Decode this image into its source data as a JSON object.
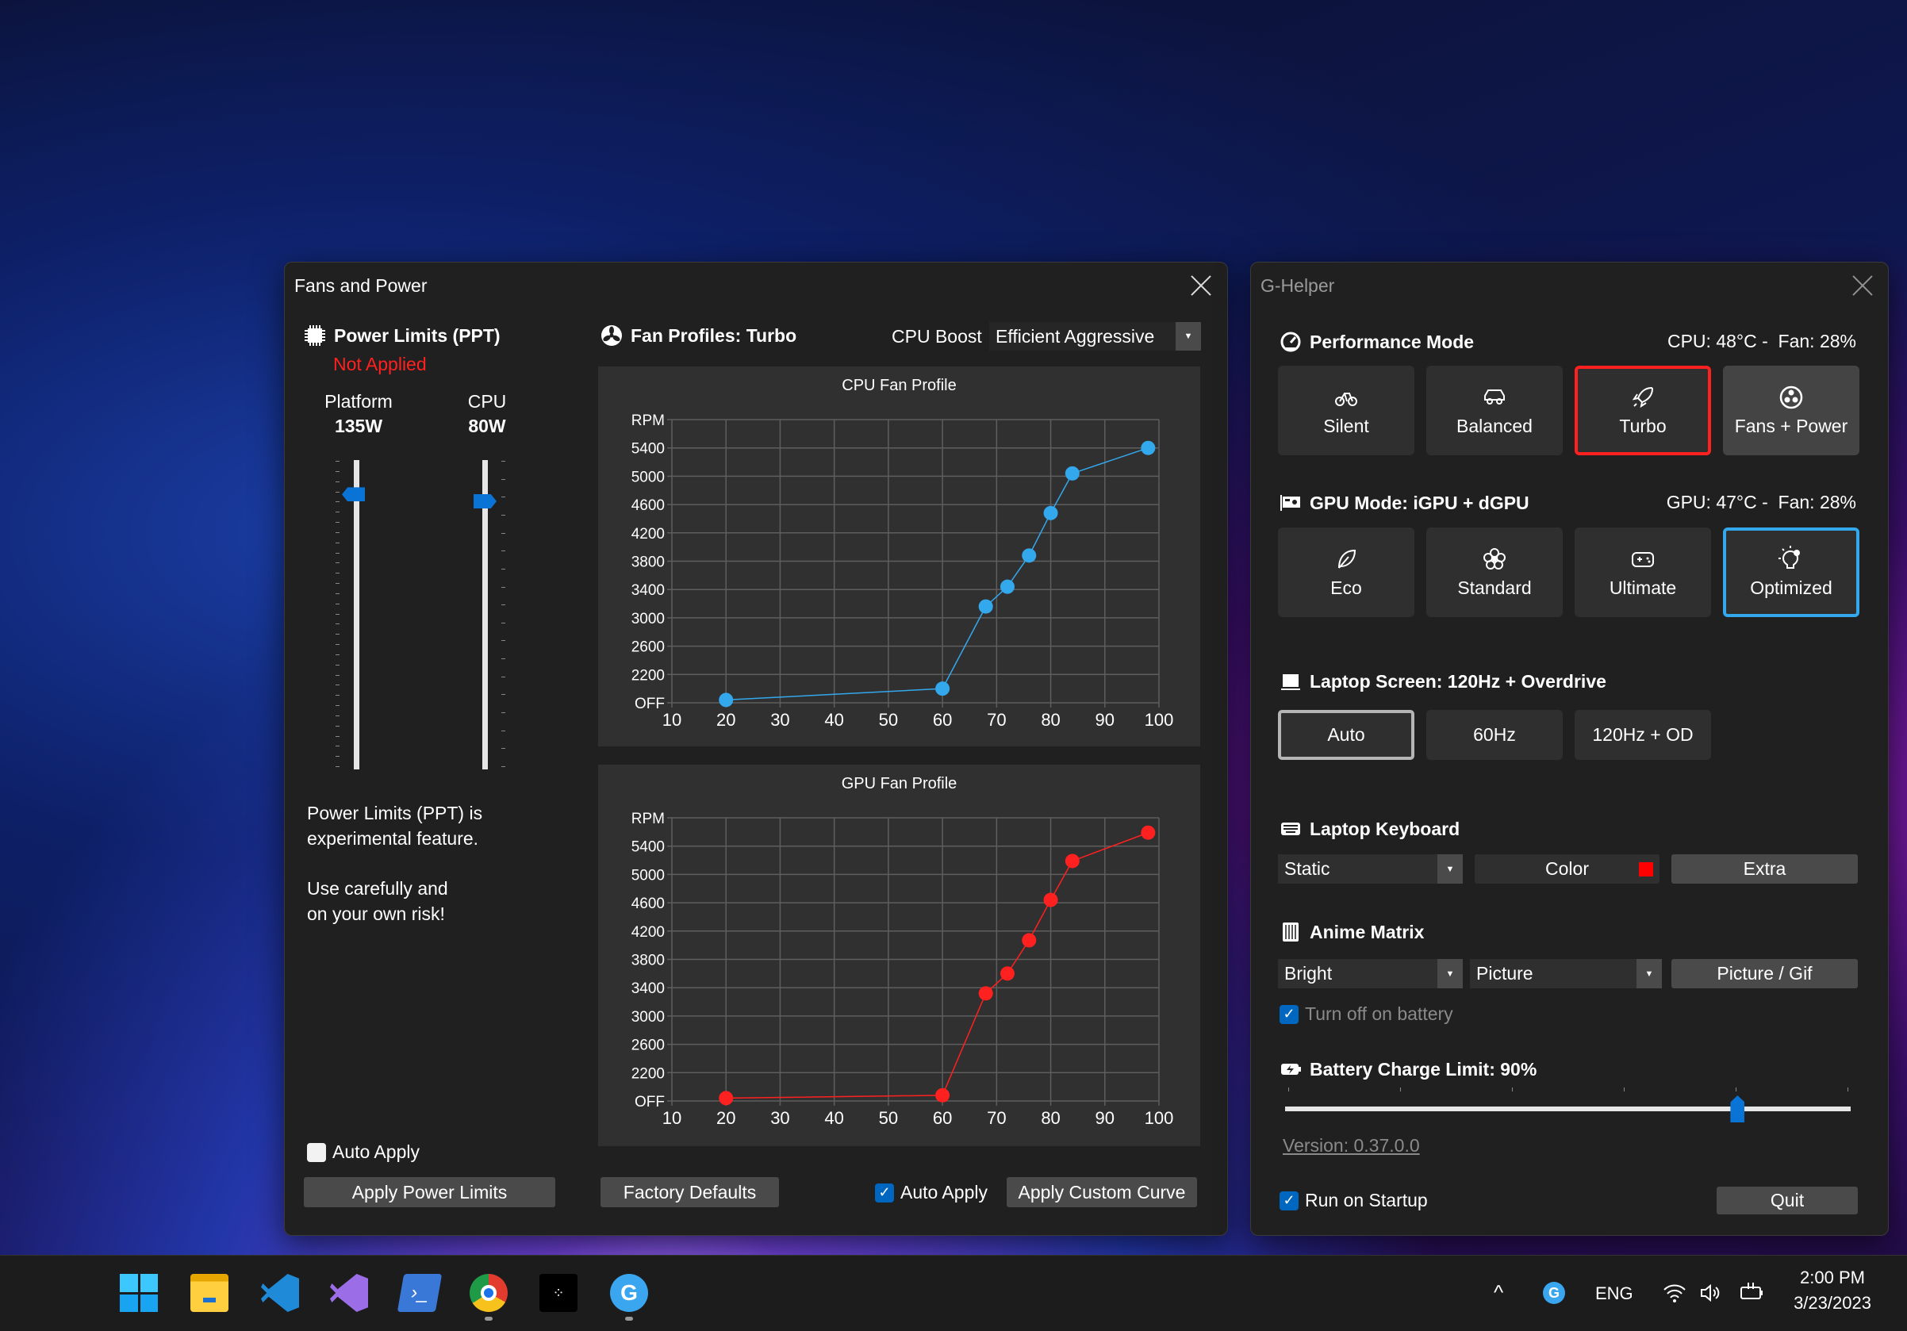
{
  "fans_window": {
    "title": "Fans and Power",
    "power": {
      "header": "Power Limits (PPT)",
      "status": "Not Applied",
      "status_color": "#ff2020",
      "platform_label": "Platform",
      "platform_value": "135W",
      "platform_watts": 135,
      "cpu_label": "CPU",
      "cpu_value": "80W",
      "cpu_watts": 80,
      "note1_line1": "Power Limits (PPT) is",
      "note1_line2": "experimental feature.",
      "note2_line1": "Use carefully and",
      "note2_line2": "on your own risk!",
      "auto_apply_label": "Auto Apply",
      "auto_apply_checked": false,
      "apply_button": "Apply Power Limits"
    },
    "fans": {
      "header": "Fan Profiles: Turbo",
      "cpu_boost_label": "CPU Boost",
      "cpu_boost_value": "Efficient Aggressive",
      "factory_defaults": "Factory Defaults",
      "auto_apply_label": "Auto Apply",
      "auto_apply_checked": true,
      "apply_curve": "Apply Custom Curve"
    }
  },
  "chart_data": [
    {
      "type": "line",
      "title": "CPU Fan Profile",
      "color": "#33a8ec",
      "x": [
        20,
        60,
        68,
        72,
        76,
        80,
        84,
        98
      ],
      "y": [
        1840,
        2000,
        3160,
        3440,
        3880,
        4480,
        5040,
        5400
      ],
      "xlim": [
        10,
        100
      ],
      "ylim": [
        1800,
        5800
      ],
      "x_ticks": [
        10,
        20,
        30,
        40,
        50,
        60,
        70,
        80,
        90,
        100
      ],
      "y_ticks": [
        {
          "value": 1800,
          "label": "OFF"
        },
        {
          "value": 2200,
          "label": "2200"
        },
        {
          "value": 2600,
          "label": "2600"
        },
        {
          "value": 3000,
          "label": "3000"
        },
        {
          "value": 3400,
          "label": "3400"
        },
        {
          "value": 3800,
          "label": "3800"
        },
        {
          "value": 4200,
          "label": "4200"
        },
        {
          "value": 4600,
          "label": "4600"
        },
        {
          "value": 5000,
          "label": "5000"
        },
        {
          "value": 5400,
          "label": "5400"
        },
        {
          "value": 5800,
          "label": "RPM"
        }
      ],
      "grid": true
    },
    {
      "type": "line",
      "title": "GPU Fan Profile",
      "color": "#ff2020",
      "x": [
        20,
        60,
        68,
        72,
        76,
        80,
        84,
        98
      ],
      "y": [
        1840,
        1880,
        3320,
        3600,
        4070,
        4640,
        5190,
        5590
      ],
      "xlim": [
        10,
        100
      ],
      "ylim": [
        1800,
        5800
      ],
      "x_ticks": [
        10,
        20,
        30,
        40,
        50,
        60,
        70,
        80,
        90,
        100
      ],
      "y_ticks": [
        {
          "value": 1800,
          "label": "OFF"
        },
        {
          "value": 2200,
          "label": "2200"
        },
        {
          "value": 2600,
          "label": "2600"
        },
        {
          "value": 3000,
          "label": "3000"
        },
        {
          "value": 3400,
          "label": "3400"
        },
        {
          "value": 3800,
          "label": "3800"
        },
        {
          "value": 4200,
          "label": "4200"
        },
        {
          "value": 4600,
          "label": "4600"
        },
        {
          "value": 5000,
          "label": "5000"
        },
        {
          "value": 5400,
          "label": "5400"
        },
        {
          "value": 5800,
          "label": "RPM"
        }
      ],
      "grid": true
    }
  ],
  "ghelper": {
    "title": "G-Helper",
    "performance": {
      "header": "Performance Mode",
      "status": "CPU: 48°C -  Fan: 28%",
      "modes": [
        {
          "label": "Silent",
          "icon": "bicycle-icon"
        },
        {
          "label": "Balanced",
          "icon": "car-icon"
        },
        {
          "label": "Turbo",
          "icon": "rocket-icon",
          "selected": true
        },
        {
          "label": "Fans + Power",
          "icon": "fan-icon"
        }
      ],
      "selected_color": "#ff2020"
    },
    "gpu": {
      "header": "GPU Mode: iGPU + dGPU",
      "status": "GPU: 47°C -  Fan: 28%",
      "modes": [
        {
          "label": "Eco",
          "icon": "leaf-icon"
        },
        {
          "label": "Standard",
          "icon": "flower-icon"
        },
        {
          "label": "Ultimate",
          "icon": "gamepad-icon"
        },
        {
          "label": "Optimized",
          "icon": "lightbulb-gear-icon",
          "selected": true
        }
      ],
      "selected_color": "#33a8ec"
    },
    "screen": {
      "header": "Laptop Screen: 120Hz + Overdrive",
      "options": [
        "Auto",
        "60Hz",
        "120Hz + OD"
      ],
      "selected": "Auto"
    },
    "keyboard": {
      "header": "Laptop Keyboard",
      "mode_value": "Static",
      "color_label": "Color",
      "color_swatch": "#ff0000",
      "extra_label": "Extra"
    },
    "matrix": {
      "header": "Anime Matrix",
      "brightness_value": "Bright",
      "mode_value": "Picture",
      "picture_button": "Picture / Gif",
      "battery_off_label": "Turn off on battery",
      "battery_off_checked": true
    },
    "battery": {
      "header": "Battery Charge Limit: 90%",
      "limit_percent": 90
    },
    "version": "Version: 0.37.0.0",
    "startup_label": "Run on Startup",
    "startup_checked": true,
    "quit_label": "Quit"
  },
  "taskbar": {
    "apps": [
      "windows-start-icon",
      "file-explorer-icon",
      "vscode-icon",
      "visual-studio-icon",
      "powershell-icon",
      "chrome-icon",
      "tidal-icon",
      "ghelper-icon"
    ],
    "tray": {
      "language": "ENG",
      "time": "2:00 PM",
      "date": "3/23/2023"
    }
  }
}
